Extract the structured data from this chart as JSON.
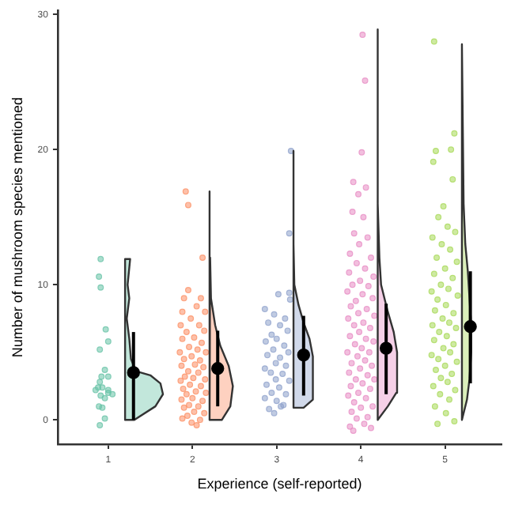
{
  "chart_data": {
    "type": "scatter",
    "xlabel": "Experience (self-reported)",
    "ylabel": "Number of mushroom species mentioned",
    "xlim": [
      0.4,
      5.67
    ],
    "xticks": [
      1,
      2,
      3,
      4,
      5
    ],
    "ylim": [
      -1.8,
      30.3
    ],
    "yticks": [
      0,
      10,
      20,
      30
    ],
    "legend": false,
    "marker": "circle",
    "series": [
      {
        "color": "#66c2a5",
        "x": [
          0.91,
          0.89,
          0.91,
          0.97,
          1.0,
          0.9,
          0.92,
          0.96,
          1.0,
          0.9,
          0.93,
          0.85,
          1.05,
          1.0,
          0.91,
          0.89,
          0.93,
          0.96,
          0.9,
          1.0,
          0.88,
          0.96
        ],
        "values": [
          11.9,
          10.6,
          9.8,
          6.7,
          5.8,
          5.2,
          3.2,
          3.7,
          3.2,
          2.8,
          2.4,
          2.2,
          1.9,
          2.2,
          1.8,
          1.0,
          0.9,
          0.1,
          -0.4,
          2.0,
          2.4,
          1.6
        ]
      },
      {
        "color": "#fc8d62",
        "x": [
          1.92,
          1.95,
          2.12,
          1.95,
          1.9,
          2.1,
          2.05,
          1.88,
          2.15,
          1.98,
          1.86,
          2.08,
          2.14,
          1.93,
          2.02,
          1.88,
          2.11,
          1.96,
          2.06,
          1.85,
          2.16,
          1.99,
          1.9,
          2.09,
          2.03,
          1.87,
          2.13,
          1.95,
          2.07,
          1.91,
          2.01,
          2.15,
          1.86,
          1.97,
          2.1,
          1.89,
          2.04,
          2.16,
          1.93,
          2.0,
          1.87,
          2.12,
          1.96,
          2.07,
          1.9,
          2.02,
          2.14,
          1.94,
          2.09,
          1.99,
          2.05,
          1.88
        ],
        "values": [
          16.9,
          15.9,
          12.0,
          9.6,
          9.0,
          9.0,
          8.4,
          8.0,
          8.0,
          7.5,
          7.0,
          7.0,
          6.6,
          6.5,
          6.1,
          6.0,
          5.7,
          5.4,
          5.2,
          5.0,
          5.0,
          4.7,
          4.5,
          4.4,
          4.1,
          4.0,
          3.9,
          3.6,
          3.5,
          3.2,
          3.1,
          3.0,
          2.9,
          2.6,
          2.5,
          2.3,
          2.1,
          2.0,
          1.9,
          1.6,
          1.5,
          1.4,
          1.1,
          1.0,
          0.9,
          0.6,
          0.5,
          0.3,
          0.0,
          -0.2,
          -0.4,
          0.1
        ]
      },
      {
        "color": "#8da0cb",
        "x": [
          3.17,
          3.15,
          3.02,
          3.15,
          3.16,
          2.86,
          2.97,
          3.1,
          2.9,
          3.04,
          3.13,
          2.94,
          3.0,
          2.87,
          3.09,
          2.96,
          3.14,
          2.89,
          3.04,
          2.99,
          3.11,
          2.86,
          2.93,
          3.07,
          2.99,
          3.15,
          2.88,
          3.03,
          2.94,
          3.11,
          2.86,
          3.0,
          3.08,
          2.91,
          2.97,
          3.05
        ],
        "values": [
          19.9,
          13.8,
          9.3,
          9.4,
          8.9,
          8.2,
          7.8,
          7.5,
          7.2,
          7.0,
          6.6,
          6.3,
          6.0,
          5.8,
          5.5,
          5.2,
          5.0,
          4.8,
          4.6,
          4.2,
          4.0,
          3.8,
          3.5,
          3.4,
          3.0,
          2.9,
          2.6,
          2.4,
          2.0,
          1.9,
          1.6,
          1.4,
          1.1,
          0.8,
          0.5,
          1.0
        ]
      },
      {
        "color": "#e78ac3",
        "x": [
          4.02,
          4.05,
          4.01,
          3.91,
          4.06,
          3.97,
          3.9,
          4.03,
          3.92,
          4.08,
          3.98,
          3.87,
          4.12,
          3.95,
          4.05,
          3.86,
          4.15,
          3.99,
          3.9,
          4.09,
          3.84,
          4.02,
          4.14,
          3.94,
          3.88,
          4.07,
          3.97,
          4.16,
          3.85,
          4.03,
          3.92,
          4.11,
          3.98,
          3.87,
          4.06,
          4.15,
          3.93,
          4.01,
          3.84,
          4.1,
          3.96,
          4.05,
          3.89,
          4.13,
          3.99,
          3.86,
          4.08,
          3.94,
          4.16,
          4.02,
          3.88,
          4.11,
          3.97,
          3.85,
          4.06,
          3.92,
          4.14,
          4.0,
          3.89,
          4.08,
          3.95,
          3.87,
          3.91,
          4.12,
          4.04
        ],
        "values": [
          28.5,
          25.1,
          19.8,
          17.6,
          17.2,
          16.7,
          15.4,
          15.0,
          13.8,
          13.5,
          13.0,
          12.3,
          12.0,
          11.6,
          11.2,
          10.9,
          10.6,
          10.3,
          10.0,
          9.9,
          9.5,
          9.3,
          9.0,
          8.8,
          8.4,
          8.2,
          7.9,
          7.7,
          7.5,
          7.2,
          7.0,
          6.8,
          6.5,
          6.2,
          6.0,
          5.8,
          5.6,
          5.3,
          5.0,
          5.0,
          4.7,
          4.4,
          4.2,
          4.0,
          3.8,
          3.5,
          3.3,
          3.0,
          3.0,
          2.7,
          2.5,
          2.3,
          2.0,
          1.8,
          1.6,
          1.3,
          1.0,
          0.9,
          0.6,
          0.2,
          0.1,
          -0.5,
          -0.8,
          -0.6,
          -0.3
        ]
      },
      {
        "color": "#a6d854",
        "x": [
          4.87,
          5.11,
          5.07,
          4.89,
          4.86,
          5.09,
          4.98,
          4.92,
          5.03,
          5.12,
          4.85,
          4.96,
          5.06,
          4.9,
          5.14,
          5.0,
          4.87,
          5.09,
          4.95,
          5.04,
          4.84,
          5.15,
          4.91,
          5.01,
          4.88,
          5.1,
          4.97,
          5.05,
          4.85,
          5.13,
          4.93,
          5.02,
          4.87,
          5.1,
          4.98,
          5.06,
          4.84,
          4.92,
          5.14,
          5.0,
          4.89,
          5.08,
          4.95,
          5.03,
          4.86,
          5.12,
          4.94,
          5.05,
          4.88,
          5.01,
          5.11,
          4.91
        ],
        "values": [
          28.0,
          21.2,
          20.0,
          19.9,
          19.1,
          17.8,
          15.8,
          15.0,
          14.3,
          13.9,
          13.5,
          13.0,
          12.6,
          12.0,
          11.7,
          11.2,
          10.8,
          10.5,
          10.0,
          9.7,
          9.5,
          9.2,
          8.9,
          8.5,
          8.1,
          7.9,
          7.5,
          7.2,
          7.0,
          6.8,
          6.5,
          6.2,
          5.9,
          5.6,
          5.3,
          5.0,
          4.8,
          4.5,
          4.3,
          4.0,
          3.7,
          3.4,
          3.1,
          2.8,
          2.5,
          2.2,
          1.9,
          1.5,
          1.0,
          0.5,
          -0.1,
          -0.3
        ]
      },
      {
        "type": "area",
        "marker": "none",
        "color": "#c2e7db",
        "x": [
          1.2,
          1.31,
          1.56,
          1.65,
          1.62,
          1.5,
          1.33,
          1.27,
          1.25,
          1.22,
          1.25,
          1.23,
          1.26,
          1.2,
          1.2
        ],
        "values": [
          0,
          0,
          1,
          1.9,
          2.7,
          3.3,
          3.6,
          4.5,
          6,
          7.5,
          9,
          10,
          11.9,
          11.9,
          0
        ]
      },
      {
        "type": "area",
        "marker": "none",
        "color": "#fed1c0",
        "x": [
          2.2,
          2.35,
          2.45,
          2.48,
          2.43,
          2.33,
          2.27,
          2.22,
          2.21,
          2.21,
          2.2,
          2.2
        ],
        "values": [
          0,
          0,
          1,
          2.5,
          4,
          5.5,
          7,
          9,
          12,
          16.9,
          16.9,
          0
        ]
      },
      {
        "type": "area",
        "marker": "none",
        "color": "#d1d9ea",
        "x": [
          3.2,
          3.32,
          3.43,
          3.43,
          3.43,
          3.39,
          3.32,
          3.26,
          3.21,
          3.2,
          3.2,
          3.2,
          3.2
        ],
        "values": [
          0.9,
          0.9,
          1.5,
          3,
          4.7,
          6,
          7.2,
          8.5,
          10,
          13,
          19.9,
          19.9,
          0.9
        ]
      },
      {
        "type": "area",
        "marker": "none",
        "color": "#f5d0e7",
        "x": [
          4.2,
          4.32,
          4.42,
          4.43,
          4.43,
          4.39,
          4.32,
          4.24,
          4.22,
          4.2,
          4.2,
          4.2
        ],
        "values": [
          0,
          1,
          2,
          3.5,
          5,
          6.5,
          8,
          10,
          12,
          16,
          28.9,
          0
        ]
      },
      {
        "type": "area",
        "marker": "none",
        "color": "#dbefbb",
        "x": [
          5.2,
          5.26,
          5.29,
          5.31,
          5.31,
          5.29,
          5.27,
          5.24,
          5.22,
          5.2,
          5.2
        ],
        "values": [
          0,
          1.5,
          3,
          5,
          7,
          9,
          11,
          13,
          16,
          27.8,
          0
        ]
      },
      {
        "color": "#000000",
        "x": [
          1.3,
          2.3,
          3.32,
          4.3,
          5.3
        ],
        "values": [
          3.5,
          3.8,
          4.8,
          5.3,
          6.9
        ],
        "errors": [
          [
            0,
            6.5
          ],
          [
            1.0,
            6.6
          ],
          [
            1.8,
            7.7
          ],
          [
            1.9,
            8.6
          ],
          [
            2.7,
            11
          ]
        ]
      }
    ]
  }
}
